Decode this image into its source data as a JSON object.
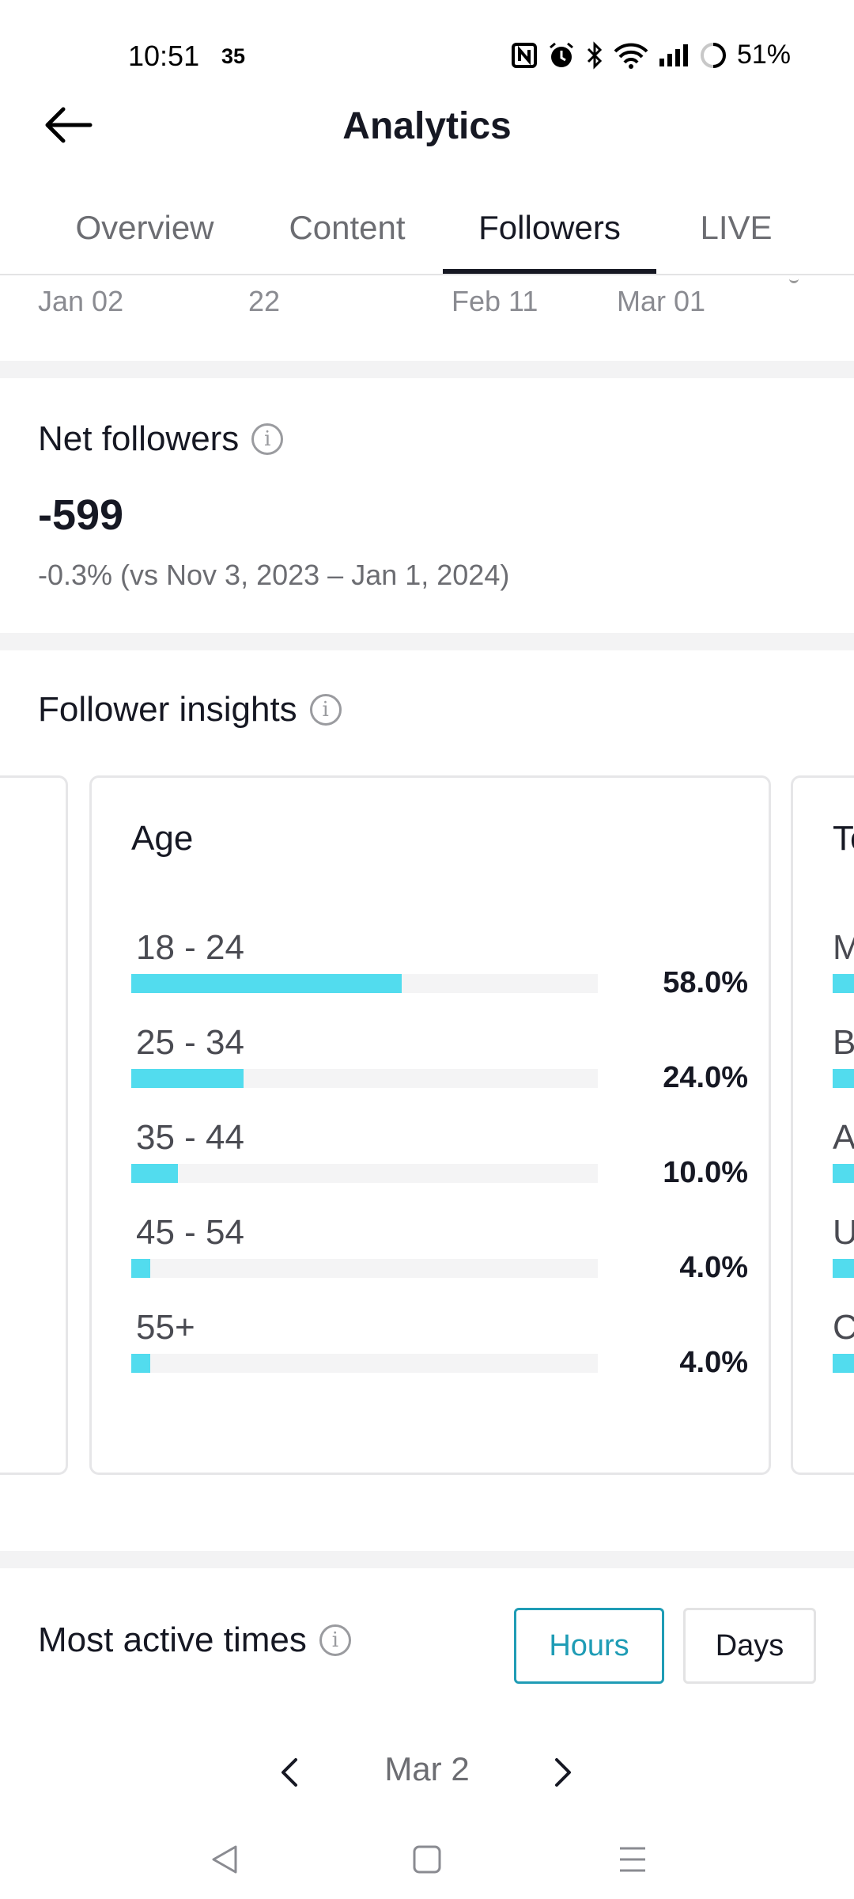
{
  "status_bar": {
    "time": "10:51",
    "sub_value": "35",
    "battery_percent": "51%",
    "icons": [
      "nfc-icon",
      "alarm-icon",
      "bluetooth-icon",
      "wifi-icon",
      "signal-icon",
      "battery-icon"
    ]
  },
  "header": {
    "title": "Analytics",
    "back_icon": "back-arrow-icon"
  },
  "tabs": [
    {
      "label": "Overview",
      "active": false
    },
    {
      "label": "Content",
      "active": false
    },
    {
      "label": "Followers",
      "active": true
    },
    {
      "label": "LIVE",
      "active": false
    }
  ],
  "date_axis": {
    "labels": [
      "Jan 02",
      "22",
      "Feb 11",
      "Mar 01"
    ]
  },
  "net_followers": {
    "title": "Net followers",
    "value": "-599",
    "comparison": "-0.3% (vs Nov 3, 2023 – Jan 1, 2024)"
  },
  "follower_insights": {
    "title": "Follower insights",
    "age_card": {
      "title": "Age",
      "rows": [
        {
          "label": "18 - 24",
          "percent": "58.0%",
          "value": 58.0
        },
        {
          "label": "25 - 34",
          "percent": "24.0%",
          "value": 24.0
        },
        {
          "label": "35 - 44",
          "percent": "10.0%",
          "value": 10.0
        },
        {
          "label": "45 - 54",
          "percent": "4.0%",
          "value": 4.0
        },
        {
          "label": "55+",
          "percent": "4.0%",
          "value": 4.0
        }
      ]
    },
    "next_card": {
      "title_partial": "Te",
      "row_letters": [
        "M",
        "B",
        "A",
        "U",
        "C"
      ]
    }
  },
  "most_active_times": {
    "title": "Most active times",
    "hours_label": "Hours",
    "days_label": "Days",
    "selected": "Hours",
    "date": "Mar 2"
  },
  "colors": {
    "accent_bar": "#52dcee",
    "selected_toggle": "#1f9cb5",
    "text_primary": "#161823",
    "text_secondary": "#6c6d72"
  }
}
